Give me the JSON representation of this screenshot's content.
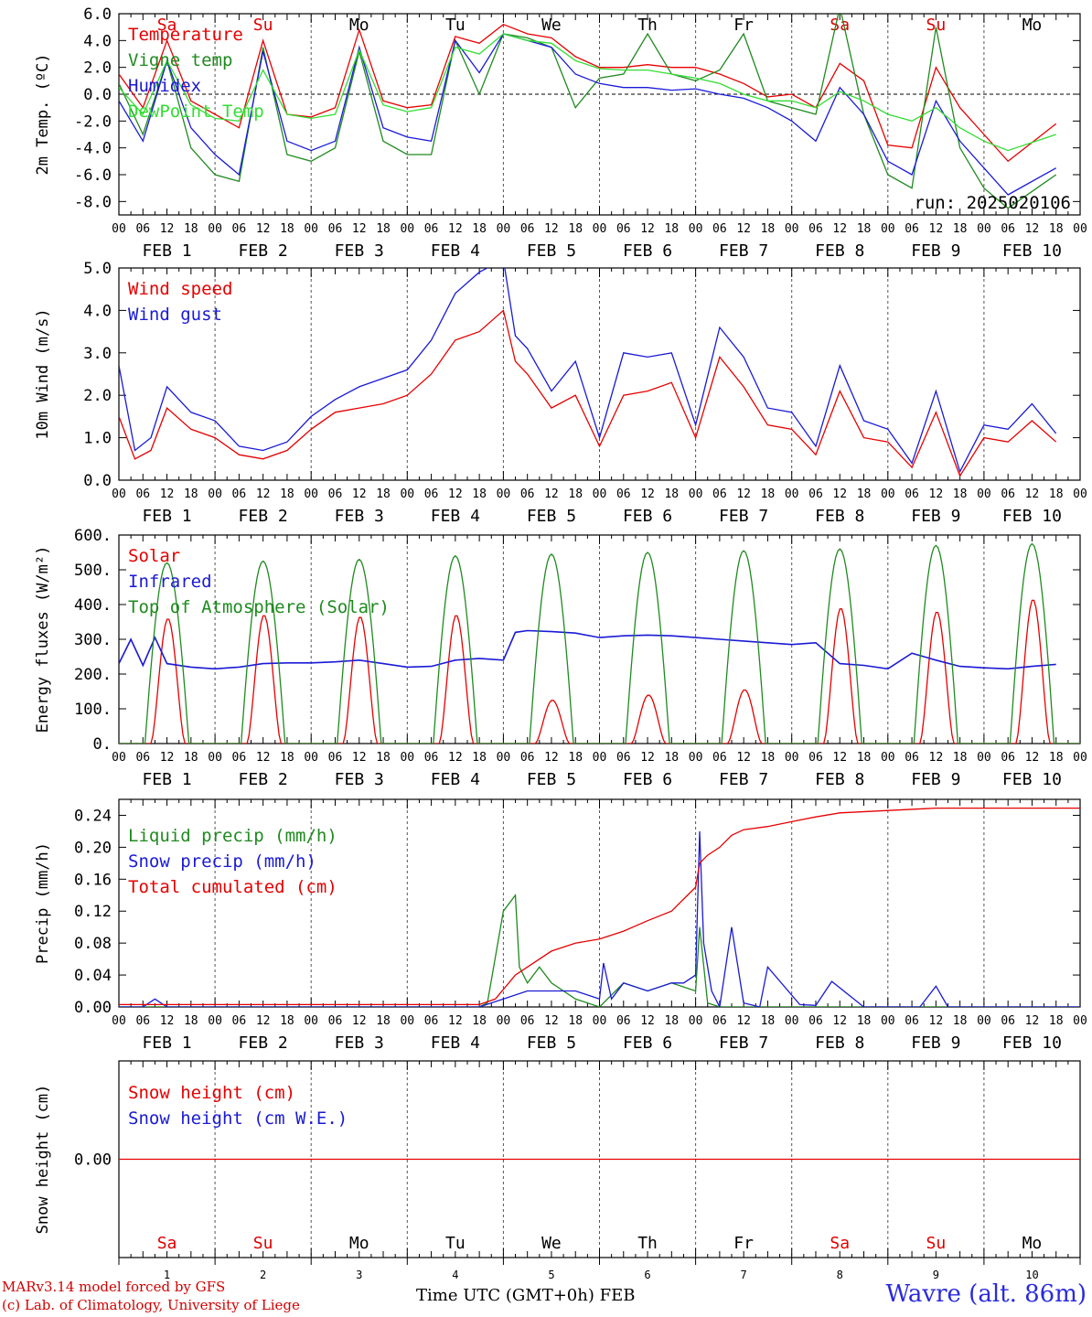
{
  "run_label": "run: 2025020106",
  "station_label": "Wavre (alt. 86m)",
  "footer": {
    "credit_line1": "MARv3.14 model forced by GFS",
    "credit_line2": "(c) Lab. of Climatology, University of Liege",
    "x_axis_label": "Time UTC (GMT+0h) FEB"
  },
  "days": [
    {
      "date": "FEB 1",
      "num": "1",
      "dow": "Sa",
      "weekend": true
    },
    {
      "date": "FEB 2",
      "num": "2",
      "dow": "Su",
      "weekend": true
    },
    {
      "date": "FEB 3",
      "num": "3",
      "dow": "Mo",
      "weekend": false
    },
    {
      "date": "FEB 4",
      "num": "4",
      "dow": "Tu",
      "weekend": false
    },
    {
      "date": "FEB 5",
      "num": "5",
      "dow": "We",
      "weekend": false
    },
    {
      "date": "FEB 6",
      "num": "6",
      "dow": "Th",
      "weekend": false
    },
    {
      "date": "FEB 7",
      "num": "7",
      "dow": "Fr",
      "weekend": false
    },
    {
      "date": "FEB 8",
      "num": "8",
      "dow": "Sa",
      "weekend": true
    },
    {
      "date": "FEB 9",
      "num": "9",
      "dow": "Su",
      "weekend": true
    },
    {
      "date": "FEB 10",
      "num": "10",
      "dow": "Mo",
      "weekend": false
    }
  ],
  "hour_ticks": [
    "00",
    "06",
    "12",
    "18"
  ],
  "colors": {
    "red": "#e60000",
    "green": "#1f8a1f",
    "blue": "#1a1ad6",
    "lightgreen": "#33dd33",
    "weekend": "#e00000"
  },
  "chart_data": [
    {
      "type": "line",
      "ylabel": "2m Temp. (ºC)",
      "ylim": [
        -9.0,
        6.0
      ],
      "yticks": [
        "6.0",
        "4.0",
        "2.0",
        "0.0",
        "-2.0",
        "-4.0",
        "-6.0",
        "-8.0"
      ],
      "ytick_values": [
        6,
        4,
        2,
        0,
        -2,
        -4,
        -6,
        -8
      ],
      "x_unit": "hours since FEB 1 00 UTC",
      "series": [
        {
          "name": "Temperature",
          "color": "red",
          "x": [
            0,
            6,
            12,
            18,
            24,
            30,
            36,
            42,
            48,
            54,
            60,
            66,
            72,
            78,
            84,
            90,
            96,
            102,
            108,
            114,
            120,
            126,
            132,
            138,
            144,
            150,
            156,
            162,
            168,
            174,
            180,
            186,
            192,
            198,
            204,
            210,
            216,
            222,
            234
          ],
          "y": [
            1.5,
            -1.0,
            4.0,
            -0.5,
            -1.5,
            -2.5,
            4.0,
            -1.5,
            -1.7,
            -1.0,
            4.8,
            -0.5,
            -1.0,
            -0.8,
            4.3,
            3.8,
            5.2,
            4.5,
            4.2,
            2.8,
            2.0,
            2.0,
            2.2,
            2.0,
            2.0,
            1.5,
            0.8,
            -0.2,
            0.0,
            -1.0,
            2.3,
            1.0,
            -3.8,
            -4.0,
            2.0,
            -1.0,
            -3.0,
            -5.0,
            -2.2
          ]
        },
        {
          "name": "Vigne temp",
          "color": "green",
          "x": [
            0,
            6,
            12,
            18,
            24,
            30,
            36,
            42,
            48,
            54,
            60,
            66,
            72,
            78,
            84,
            90,
            96,
            102,
            108,
            114,
            120,
            126,
            132,
            138,
            144,
            150,
            156,
            162,
            168,
            174,
            180,
            186,
            192,
            198,
            204,
            210,
            216,
            222,
            234
          ],
          "y": [
            0.8,
            -3.0,
            2.5,
            -4.0,
            -6.0,
            -6.5,
            3.5,
            -4.5,
            -5.0,
            -4.0,
            3.2,
            -3.5,
            -4.5,
            -4.5,
            4.0,
            0.0,
            4.5,
            4.2,
            3.5,
            -1.0,
            1.2,
            1.5,
            4.5,
            1.5,
            1.0,
            1.8,
            4.5,
            -0.5,
            -1.0,
            -1.5,
            6.5,
            -1.5,
            -6.0,
            -7.0,
            5.0,
            -4.0,
            -7.0,
            -8.5,
            -6.0
          ]
        },
        {
          "name": "Humidex",
          "color": "blue",
          "x": [
            0,
            6,
            12,
            18,
            24,
            30,
            36,
            42,
            48,
            54,
            60,
            66,
            72,
            78,
            84,
            90,
            96,
            102,
            108,
            114,
            120,
            126,
            132,
            138,
            144,
            150,
            156,
            162,
            168,
            174,
            180,
            186,
            192,
            198,
            204,
            210,
            216,
            222,
            234
          ],
          "y": [
            -0.5,
            -3.5,
            2.5,
            -2.5,
            -4.5,
            -6.0,
            3.2,
            -3.5,
            -4.2,
            -3.5,
            3.5,
            -2.5,
            -3.2,
            -3.5,
            4.0,
            1.6,
            4.5,
            4.0,
            3.5,
            1.5,
            0.8,
            0.5,
            0.5,
            0.3,
            0.4,
            0.0,
            -0.3,
            -1.0,
            -2.0,
            -3.5,
            0.5,
            -1.5,
            -5.0,
            -6.0,
            -0.5,
            -3.5,
            -5.5,
            -7.5,
            -5.5
          ]
        },
        {
          "name": "DewPoint Temp",
          "color": "lightgreen",
          "x": [
            0,
            6,
            12,
            18,
            24,
            30,
            36,
            42,
            48,
            54,
            60,
            66,
            72,
            78,
            84,
            90,
            96,
            102,
            108,
            114,
            120,
            126,
            132,
            138,
            144,
            150,
            156,
            162,
            168,
            174,
            180,
            186,
            192,
            198,
            204,
            210,
            216,
            222,
            234
          ],
          "y": [
            0.5,
            -1.5,
            2.5,
            -0.8,
            -1.8,
            -2.0,
            1.8,
            -1.5,
            -1.8,
            -1.5,
            3.3,
            -0.8,
            -1.3,
            -1.0,
            3.5,
            3.0,
            4.5,
            4.0,
            3.8,
            2.5,
            1.9,
            1.8,
            1.8,
            1.5,
            1.2,
            0.8,
            0.0,
            -0.5,
            -0.5,
            -1.0,
            0.2,
            -0.5,
            -1.5,
            -2.0,
            -1.0,
            -2.5,
            -3.5,
            -4.2,
            -3.0
          ]
        }
      ],
      "legend": [
        {
          "label": "Temperature",
          "color": "red"
        },
        {
          "label": "Vigne temp",
          "color": "green"
        },
        {
          "label": "Humidex",
          "color": "blue"
        },
        {
          "label": "DewPoint Temp",
          "color": "lightgreen"
        }
      ],
      "legend_placement": "top-left",
      "zero_line": true,
      "dow_labels": true
    },
    {
      "type": "line",
      "ylabel": "10m Wind (m/s)",
      "ylim": [
        0.0,
        5.0
      ],
      "yticks": [
        "5.0",
        "4.0",
        "3.0",
        "2.0",
        "1.0",
        "0.0"
      ],
      "ytick_values": [
        5,
        4,
        3,
        2,
        1,
        0
      ],
      "series": [
        {
          "name": "Wind speed",
          "color": "red",
          "x": [
            0,
            4,
            8,
            12,
            18,
            24,
            30,
            36,
            42,
            48,
            54,
            60,
            66,
            72,
            78,
            84,
            90,
            96,
            99,
            102,
            108,
            114,
            120,
            126,
            132,
            138,
            144,
            150,
            156,
            162,
            168,
            174,
            180,
            186,
            192,
            198,
            204,
            210,
            216,
            222,
            228,
            234
          ],
          "y": [
            1.5,
            0.5,
            0.7,
            1.7,
            1.2,
            1.0,
            0.6,
            0.5,
            0.7,
            1.2,
            1.6,
            1.7,
            1.8,
            2.0,
            2.5,
            3.3,
            3.5,
            4.0,
            2.8,
            2.5,
            1.7,
            2.0,
            0.8,
            2.0,
            2.1,
            2.3,
            1.0,
            2.9,
            2.2,
            1.3,
            1.2,
            0.6,
            2.1,
            1.0,
            0.9,
            0.3,
            1.6,
            0.1,
            1.0,
            0.9,
            1.4,
            0.9
          ]
        },
        {
          "name": "Wind gust",
          "color": "blue",
          "x": [
            0,
            4,
            8,
            12,
            18,
            24,
            30,
            36,
            42,
            48,
            54,
            60,
            66,
            72,
            78,
            84,
            90,
            96,
            99,
            102,
            108,
            114,
            120,
            126,
            132,
            138,
            144,
            150,
            156,
            162,
            168,
            174,
            180,
            186,
            192,
            198,
            204,
            210,
            216,
            222,
            228,
            234
          ],
          "y": [
            2.7,
            0.7,
            1.0,
            2.2,
            1.6,
            1.4,
            0.8,
            0.7,
            0.9,
            1.5,
            1.9,
            2.2,
            2.4,
            2.6,
            3.3,
            4.4,
            4.9,
            5.2,
            3.4,
            3.1,
            2.1,
            2.8,
            1.0,
            3.0,
            2.9,
            3.0,
            1.3,
            3.6,
            2.9,
            1.7,
            1.6,
            0.8,
            2.7,
            1.4,
            1.2,
            0.4,
            2.1,
            0.2,
            1.3,
            1.2,
            1.8,
            1.1
          ]
        }
      ],
      "legend": [
        {
          "label": "Wind speed",
          "color": "red"
        },
        {
          "label": "Wind gust",
          "color": "blue"
        }
      ],
      "legend_placement": "top-left",
      "ref_line": 5.0
    },
    {
      "type": "line",
      "ylabel": "Energy fluxes (W/m²)",
      "ylim": [
        0,
        600
      ],
      "yticks": [
        "600.",
        "500.",
        "400.",
        "300.",
        "200.",
        "100.",
        "0."
      ],
      "ytick_values": [
        600,
        500,
        400,
        300,
        200,
        100,
        0
      ],
      "series": [
        {
          "name": "Solar",
          "color": "red",
          "peaks": [
            360,
            370,
            365,
            370,
            125,
            140,
            155,
            390,
            380,
            415
          ]
        },
        {
          "name": "Infrared",
          "color": "blue",
          "x": [
            0,
            3,
            6,
            9,
            12,
            18,
            24,
            30,
            36,
            42,
            48,
            54,
            60,
            66,
            72,
            78,
            84,
            90,
            96,
            99,
            102,
            108,
            114,
            120,
            126,
            132,
            138,
            144,
            150,
            156,
            162,
            168,
            174,
            180,
            186,
            192,
            198,
            204,
            210,
            216,
            222,
            228,
            234
          ],
          "y": [
            230,
            300,
            225,
            305,
            230,
            220,
            215,
            220,
            230,
            232,
            232,
            235,
            240,
            230,
            220,
            222,
            240,
            245,
            240,
            320,
            325,
            322,
            318,
            305,
            310,
            312,
            310,
            305,
            300,
            295,
            290,
            285,
            290,
            230,
            225,
            215,
            260,
            240,
            222,
            218,
            215,
            222,
            228
          ]
        },
        {
          "name": "Top of Atmosphere (Solar)",
          "color": "green",
          "peaks": [
            520,
            525,
            530,
            540,
            545,
            550,
            555,
            560,
            570,
            575
          ]
        }
      ],
      "legend": [
        {
          "label": "Solar",
          "color": "red"
        },
        {
          "label": "Infrared",
          "color": "blue"
        },
        {
          "label": "Top of Atmosphere (Solar)",
          "color": "green"
        }
      ],
      "legend_placement": "top-left"
    },
    {
      "type": "line",
      "ylabel": "Precip (mm/h)",
      "ylim": [
        0.0,
        0.26
      ],
      "yticks": [
        "0.24",
        "0.20",
        "0.16",
        "0.12",
        "0.08",
        "0.04",
        "0.00"
      ],
      "ytick_values": [
        0.24,
        0.2,
        0.16,
        0.12,
        0.08,
        0.04,
        0.0
      ],
      "series": [
        {
          "name": "Liquid precip (mm/h)",
          "color": "green",
          "x": [
            0,
            90,
            92,
            96,
            99,
            100,
            102,
            105,
            108,
            114,
            120,
            126,
            132,
            138,
            144,
            145,
            147,
            150,
            156,
            168,
            240
          ],
          "y": [
            0,
            0,
            0.005,
            0.12,
            0.14,
            0.05,
            0.03,
            0.05,
            0.03,
            0.01,
            0.0,
            0.03,
            0.02,
            0.03,
            0.02,
            0.1,
            0.005,
            0.0,
            0.0,
            0.0,
            0.0
          ]
        },
        {
          "name": "Snow precip (mm/h)",
          "color": "blue",
          "x": [
            0,
            6,
            9,
            12,
            90,
            102,
            114,
            120,
            121,
            123,
            126,
            132,
            138,
            141,
            144,
            145,
            146,
            148,
            150,
            153,
            156,
            160,
            162,
            170,
            174,
            178,
            186,
            189,
            192,
            200,
            204,
            207,
            240
          ],
          "y": [
            0,
            0,
            0.01,
            0,
            0,
            0.02,
            0.02,
            0.01,
            0.055,
            0.01,
            0.03,
            0.02,
            0.03,
            0.03,
            0.04,
            0.22,
            0.08,
            0.02,
            0.0,
            0.1,
            0.005,
            0.0,
            0.05,
            0.003,
            0.002,
            0.032,
            0.0,
            0.0,
            0.0,
            0.0,
            0.026,
            0.0,
            0.0
          ]
        },
        {
          "name": "Total cumulated (cm)",
          "color": "red",
          "x": [
            0,
            90,
            94,
            99,
            108,
            114,
            120,
            126,
            132,
            138,
            144,
            145,
            147,
            150,
            153,
            156,
            162,
            168,
            174,
            180,
            192,
            204,
            216,
            240
          ],
          "y": [
            0.003,
            0.003,
            0.01,
            0.04,
            0.07,
            0.08,
            0.085,
            0.095,
            0.108,
            0.12,
            0.15,
            0.18,
            0.19,
            0.2,
            0.215,
            0.222,
            0.226,
            0.232,
            0.238,
            0.243,
            0.246,
            0.249,
            0.249,
            0.249
          ]
        }
      ],
      "legend": [
        {
          "label": "Liquid precip (mm/h)",
          "color": "green"
        },
        {
          "label": "Snow precip (mm/h)",
          "color": "blue"
        },
        {
          "label": "Total cumulated (cm)",
          "color": "red"
        }
      ],
      "legend_placement": "top-left"
    },
    {
      "type": "line",
      "ylabel": "Snow height (cm)",
      "ylim": [
        -1,
        1
      ],
      "yticks": [
        "0.00"
      ],
      "ytick_values": [
        0
      ],
      "series": [
        {
          "name": "Snow height (cm)",
          "color": "red",
          "x": [
            0,
            240
          ],
          "y": [
            0,
            0
          ]
        },
        {
          "name": "Snow height (cm W.E.)",
          "color": "blue",
          "x": [],
          "y": []
        }
      ],
      "legend": [
        {
          "label": "Snow height (cm)",
          "color": "red"
        },
        {
          "label": "Snow height (cm W.E.)",
          "color": "blue"
        }
      ],
      "legend_placement": "top-left"
    }
  ]
}
